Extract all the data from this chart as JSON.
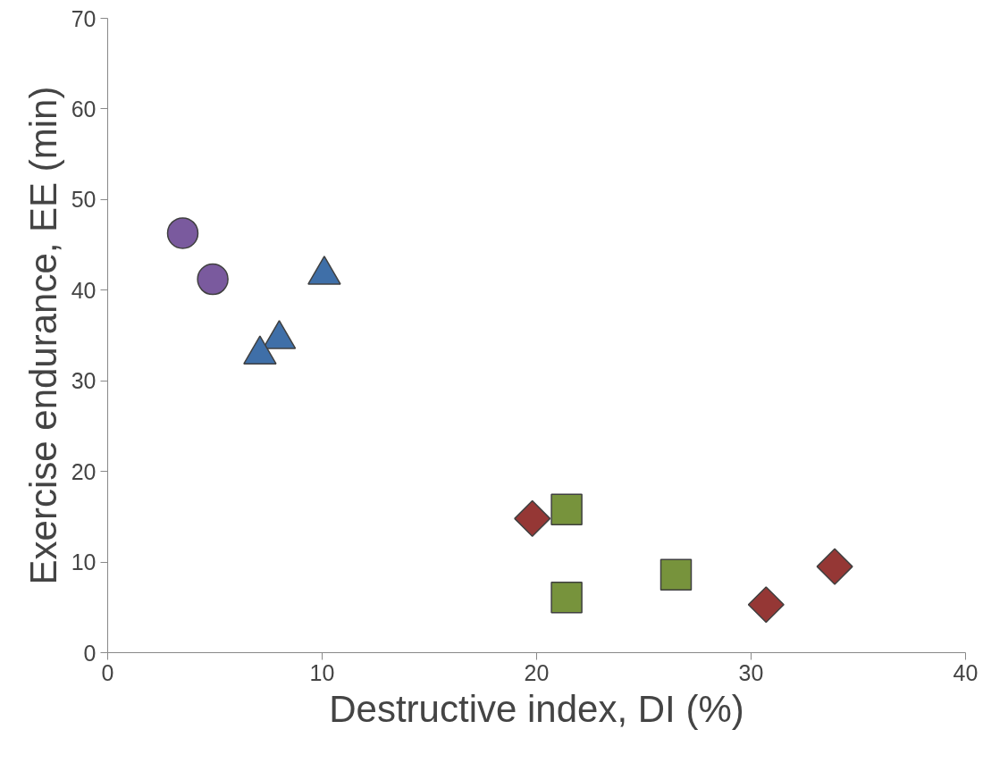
{
  "chart_data": {
    "type": "scatter",
    "xlabel": "Destructive index, DI (%)",
    "ylabel": "Exercise endurance, EE (min)",
    "xlim": [
      0,
      40
    ],
    "xticks": [
      0,
      10,
      20,
      30,
      40
    ],
    "ylim": [
      0,
      70
    ],
    "yticks": [
      0,
      10,
      20,
      30,
      40,
      50,
      60,
      70
    ],
    "grid": false,
    "series": [
      {
        "color": "#7a5a9e",
        "marker": "circle",
        "x": [
          3.5,
          4.9
        ],
        "values": [
          46.3,
          41.2
        ]
      },
      {
        "color": "#3f6fa8",
        "marker": "triangle",
        "x": [
          10.1,
          8.0,
          7.1
        ],
        "values": [
          41.7,
          34.6,
          32.9
        ]
      },
      {
        "color": "#77933c",
        "marker": "square",
        "x": [
          21.4,
          21.4,
          26.5
        ],
        "values": [
          15.8,
          6.1,
          8.6
        ]
      },
      {
        "color": "#953735",
        "marker": "diamond",
        "x": [
          19.8,
          30.7,
          33.9
        ],
        "values": [
          14.8,
          5.3,
          9.5
        ]
      }
    ]
  }
}
